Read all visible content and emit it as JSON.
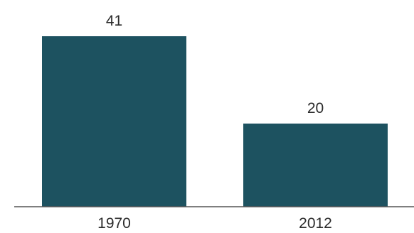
{
  "chart_data": {
    "type": "bar",
    "categories": [
      "1970",
      "2012"
    ],
    "values": [
      41,
      20
    ],
    "data_labels": [
      "41",
      "20"
    ],
    "title": "",
    "xlabel": "",
    "ylabel": "",
    "ylim": [
      0,
      41
    ],
    "grid": false,
    "legend": "none",
    "bar_color": "#1d5260",
    "axis_color": "#555555",
    "text_color": "#2b2b2b"
  }
}
